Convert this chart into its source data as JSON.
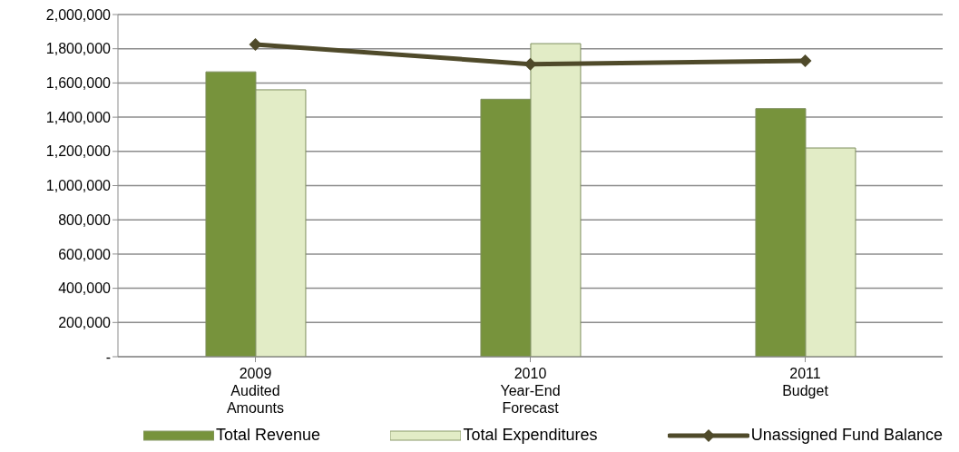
{
  "chart_data": {
    "type": "bar",
    "categories": [
      "2009\nAudited\nAmounts",
      "2010\nYear-End\nForecast",
      "2011\nBudget"
    ],
    "series": [
      {
        "name": "Total Revenue",
        "color": "#77933c",
        "values": [
          1665000,
          1505000,
          1450000
        ]
      },
      {
        "name": "Total Expenditures",
        "color": "#e2ecc6",
        "values": [
          1560000,
          1830000,
          1220000
        ]
      },
      {
        "name": "Unassigned Fund Balance",
        "type": "line",
        "color": "#4f4a2a",
        "values": [
          1825000,
          1710000,
          1730000
        ]
      }
    ],
    "ylim": [
      0,
      2000000
    ],
    "yticks": [
      {
        "value": 0,
        "label": "-"
      },
      {
        "value": 200000,
        "label": "200,000"
      },
      {
        "value": 400000,
        "label": "400,000"
      },
      {
        "value": 600000,
        "label": "600,000"
      },
      {
        "value": 800000,
        "label": "800,000"
      },
      {
        "value": 1000000,
        "label": "1,000,000"
      },
      {
        "value": 1200000,
        "label": "1,200,000"
      },
      {
        "value": 1400000,
        "label": "1,400,000"
      },
      {
        "value": 1600000,
        "label": "1,600,000"
      },
      {
        "value": 1800000,
        "label": "1,800,000"
      },
      {
        "value": 2000000,
        "label": "2,000,000"
      }
    ],
    "grid": "y",
    "legend": "bottom",
    "marker": "diamond",
    "line_style": "solid"
  }
}
